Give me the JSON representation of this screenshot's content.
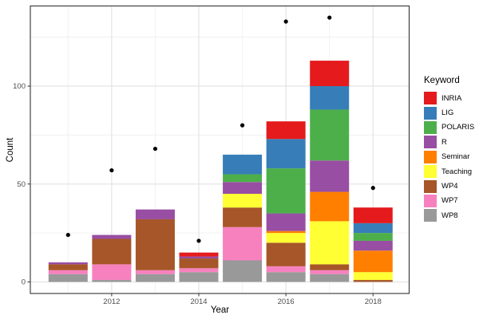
{
  "chart_data": {
    "type": "bar",
    "subtype": "stacked-bars-with-scatter-points",
    "title": "",
    "xlabel": "Year",
    "ylabel": "Count",
    "categories": [
      2011,
      2012,
      2013,
      2014,
      2015,
      2016,
      2017,
      2018
    ],
    "series": [
      {
        "name": "WP8",
        "color": "#999999",
        "values": [
          4,
          1,
          4,
          5,
          11,
          5,
          4,
          0
        ]
      },
      {
        "name": "WP7",
        "color": "#f781bf",
        "values": [
          2,
          8,
          2,
          2,
          17,
          3,
          2,
          0
        ]
      },
      {
        "name": "WP4",
        "color": "#a65628",
        "values": [
          3,
          13,
          26,
          5,
          10,
          12,
          3,
          1
        ]
      },
      {
        "name": "Teaching",
        "color": "#ffff33",
        "values": [
          0,
          0,
          0,
          0,
          7,
          5,
          22,
          4
        ]
      },
      {
        "name": "Seminar",
        "color": "#ff7f00",
        "values": [
          0,
          0,
          0,
          0,
          0,
          1,
          15,
          11
        ]
      },
      {
        "name": "R",
        "color": "#984ea3",
        "values": [
          1,
          2,
          5,
          1,
          6,
          9,
          16,
          5
        ]
      },
      {
        "name": "POLARIS",
        "color": "#4daf4a",
        "values": [
          0,
          0,
          0,
          0,
          4,
          23,
          26,
          4
        ]
      },
      {
        "name": "LIG",
        "color": "#377eb8",
        "values": [
          0,
          0,
          0,
          0,
          10,
          15,
          12,
          5
        ]
      },
      {
        "name": "INRIA",
        "color": "#e41a1c",
        "values": [
          0,
          0,
          0,
          2,
          0,
          9,
          13,
          8
        ]
      }
    ],
    "stack_totals": [
      10,
      24,
      37,
      15,
      65,
      82,
      113,
      38
    ],
    "points_series": {
      "name": "total-dots",
      "color": "#000000",
      "values": [
        24,
        57,
        68,
        21,
        80,
        133,
        135,
        48
      ]
    },
    "axes": {
      "y_major_ticks": [
        0,
        50,
        100
      ],
      "y_minor_gridlines": [
        25,
        75,
        125
      ],
      "x_major_ticks": [
        2012,
        2014,
        2016,
        2018
      ],
      "x_minor_gridlines": [
        2011,
        2013,
        2015,
        2017
      ],
      "y_range": [
        0,
        141
      ]
    },
    "legend": {
      "title": "Keyword",
      "position": "right",
      "items": [
        {
          "label": "INRIA",
          "color": "#e41a1c"
        },
        {
          "label": "LIG",
          "color": "#377eb8"
        },
        {
          "label": "POLARIS",
          "color": "#4daf4a"
        },
        {
          "label": "R",
          "color": "#984ea3"
        },
        {
          "label": "Seminar",
          "color": "#ff7f00"
        },
        {
          "label": "Teaching",
          "color": "#ffff33"
        },
        {
          "label": "WP4",
          "color": "#a65628"
        },
        {
          "label": "WP7",
          "color": "#f781bf"
        },
        {
          "label": "WP8",
          "color": "#999999"
        }
      ]
    },
    "grid": true,
    "colors": {
      "background": "#ffffff",
      "panel_border": "#333333",
      "grid_major": "#e4e4e4",
      "grid_minor": "#f0f0f0",
      "tick_mark": "#333333",
      "tick_text": "#4d4d4d",
      "axis_title": "#000000"
    }
  }
}
